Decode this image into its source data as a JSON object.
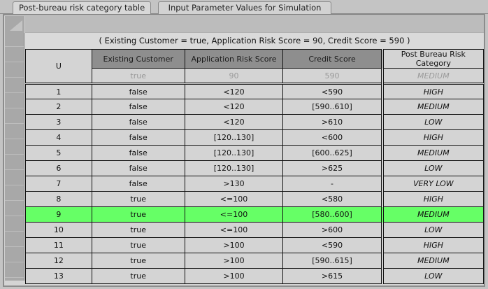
{
  "tabs": [
    "Post-bureau risk category table",
    "Input Parameter Values for Simulation"
  ],
  "caption": "( Existing Customer = true, Application Risk Score = 90, Credit Score = 590 )",
  "table": {
    "rule_col": "U",
    "columns": [
      "Existing Customer",
      "Application Risk Score",
      "Credit Score",
      "Post Bureau Risk Category"
    ],
    "input_values": [
      "true",
      "90",
      "590",
      "MEDIUM"
    ],
    "highlight_color": "#66ff66",
    "highlighted_rule": "9",
    "rows": [
      [
        "1",
        "false",
        "<120",
        "<590",
        "HIGH"
      ],
      [
        "2",
        "false",
        "<120",
        "[590..610]",
        "MEDIUM"
      ],
      [
        "3",
        "false",
        "<120",
        ">610",
        "LOW"
      ],
      [
        "4",
        "false",
        "[120..130]",
        "<600",
        "HIGH"
      ],
      [
        "5",
        "false",
        "[120..130]",
        "[600..625]",
        "MEDIUM"
      ],
      [
        "6",
        "false",
        "[120..130]",
        ">625",
        "LOW"
      ],
      [
        "7",
        "false",
        ">130",
        "-",
        "VERY LOW"
      ],
      [
        "8",
        "true",
        "<=100",
        "<580",
        "HIGH"
      ],
      [
        "9",
        "true",
        "<=100",
        "[580..600]",
        "MEDIUM"
      ],
      [
        "10",
        "true",
        "<=100",
        ">600",
        "LOW"
      ],
      [
        "11",
        "true",
        ">100",
        "<590",
        "HIGH"
      ],
      [
        "12",
        "true",
        ">100",
        "[590..615]",
        "MEDIUM"
      ],
      [
        "13",
        "true",
        ">100",
        ">615",
        "LOW"
      ]
    ]
  }
}
